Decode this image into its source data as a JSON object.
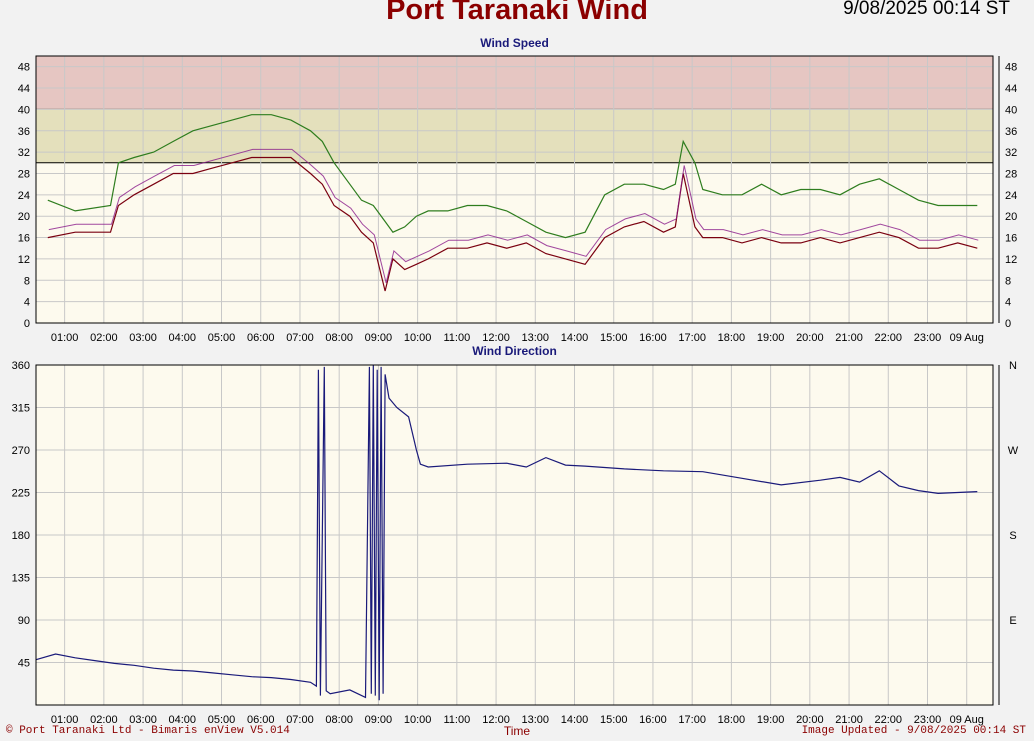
{
  "title": "Port Taranaki Wind",
  "timestamp": "9/08/2025 00:14 ST",
  "footer_left": "© Port Taranaki Ltd - Bimaris enView V5.014",
  "footer_right": "Image Updated - 9/08/2025 00:14 ST",
  "x_axis_label": "Time",
  "colors": {
    "speed_band_high": "#e6c6c2",
    "speed_band_mid": "#e4e0bc",
    "plot_bg": "#fdfaee",
    "gust_line": "#2e7d1e",
    "avg_line_dark": "#7a0010",
    "avg_line_purple": "#8a1a8a",
    "direction_line": "#1a1a7a"
  },
  "chart_data": [
    {
      "type": "line",
      "title": "Wind Speed",
      "xlabel": "",
      "ylabel": "",
      "ylim": [
        0,
        50
      ],
      "yticks": [
        "0",
        "4",
        "8",
        "12",
        "16",
        "20",
        "24",
        "28",
        "32",
        "36",
        "40",
        "44",
        "48"
      ],
      "xticks": [
        "01:00",
        "02:00",
        "03:00",
        "04:00",
        "05:00",
        "06:00",
        "07:00",
        "08:00",
        "09:00",
        "10:00",
        "11:00",
        "12:00",
        "13:00",
        "14:00",
        "15:00",
        "16:00",
        "17:00",
        "18:00",
        "19:00",
        "20:00",
        "21:00",
        "22:00",
        "23:00",
        "09 Aug"
      ],
      "bands": [
        {
          "from": 40,
          "to": 50,
          "color": "#e6c6c2"
        },
        {
          "from": 30,
          "to": 40,
          "color": "#e4e0bc"
        }
      ],
      "grid": true,
      "x_hours": [
        0.3,
        1.0,
        1.9,
        2.1,
        2.5,
        3.0,
        3.5,
        4.0,
        4.5,
        5.0,
        5.5,
        6.0,
        6.5,
        7.0,
        7.3,
        7.6,
        8.0,
        8.3,
        8.6,
        8.9,
        9.1,
        9.4,
        9.7,
        10.0,
        10.5,
        11.0,
        11.5,
        12.0,
        12.5,
        13.0,
        13.5,
        14.0,
        14.5,
        15.0,
        15.5,
        16.0,
        16.3,
        16.5,
        16.8,
        17.0,
        17.5,
        18.0,
        18.5,
        19.0,
        19.5,
        20.0,
        20.5,
        21.0,
        21.5,
        22.0,
        22.5,
        23.0,
        23.5,
        24.0
      ],
      "series": [
        {
          "values": [
            23,
            21,
            22,
            30,
            31,
            32,
            34,
            36,
            37,
            38,
            39,
            39,
            38,
            36,
            34,
            30,
            26,
            23,
            22,
            19,
            17,
            18,
            20,
            21,
            21,
            22,
            22,
            21,
            19,
            17,
            16,
            17,
            24,
            26,
            26,
            25,
            26,
            34,
            30,
            25,
            24,
            24,
            26,
            24,
            25,
            25,
            24,
            26,
            27,
            25,
            23,
            22,
            22,
            22
          ],
          "color": "#2e7d1e"
        },
        {
          "values": [
            16,
            17,
            17,
            22,
            24,
            26,
            28,
            28,
            29,
            30,
            31,
            31,
            31,
            28,
            26,
            22,
            20,
            17,
            15,
            6,
            12,
            10,
            11,
            12,
            14,
            14,
            15,
            14,
            15,
            13,
            12,
            11,
            16,
            18,
            19,
            17,
            18,
            28,
            18,
            16,
            16,
            15,
            16,
            15,
            15,
            16,
            15,
            16,
            17,
            16,
            14,
            14,
            15,
            14
          ],
          "color": "#7a0010"
        }
      ]
    },
    {
      "type": "line",
      "title": "Wind Direction",
      "xlabel": "Time",
      "ylabel": "",
      "ylim": [
        0,
        360
      ],
      "yticks": [
        "45",
        "90",
        "135",
        "180",
        "225",
        "270",
        "315",
        "360"
      ],
      "compass": [
        {
          "deg": 90,
          "label": "E"
        },
        {
          "deg": 180,
          "label": "S"
        },
        {
          "deg": 270,
          "label": "W"
        },
        {
          "deg": 360,
          "label": "N"
        }
      ],
      "xticks": [
        "01:00",
        "02:00",
        "03:00",
        "04:00",
        "05:00",
        "06:00",
        "07:00",
        "08:00",
        "09:00",
        "10:00",
        "11:00",
        "12:00",
        "13:00",
        "14:00",
        "15:00",
        "16:00",
        "17:00",
        "18:00",
        "19:00",
        "20:00",
        "21:00",
        "22:00",
        "23:00",
        "09 Aug"
      ],
      "grid": true,
      "x_hours": [
        0.0,
        0.5,
        1.0,
        1.5,
        2.0,
        2.5,
        3.0,
        3.5,
        4.0,
        4.5,
        5.0,
        5.5,
        6.0,
        6.5,
        7.0,
        7.15,
        7.2,
        7.25,
        7.35,
        7.4,
        7.5,
        8.0,
        8.4,
        8.5,
        8.55,
        8.6,
        8.65,
        8.7,
        8.75,
        8.8,
        8.85,
        8.9,
        9.0,
        9.2,
        9.5,
        9.7,
        9.8,
        10.0,
        11.0,
        12.0,
        12.5,
        13.0,
        13.5,
        14.0,
        15.0,
        16.0,
        17.0,
        18.0,
        19.0,
        20.0,
        20.5,
        21.0,
        21.5,
        22.0,
        22.5,
        23.0,
        23.5,
        24.0
      ],
      "series": [
        {
          "values": [
            48,
            54,
            50,
            47,
            44,
            42,
            39,
            37,
            36,
            34,
            32,
            30,
            29,
            27,
            24,
            20,
            355,
            10,
            358,
            15,
            12,
            16,
            8,
            358,
            12,
            360,
            10,
            355,
            5,
            358,
            12,
            350,
            325,
            315,
            305,
            270,
            255,
            252,
            255,
            256,
            252,
            262,
            254,
            253,
            250,
            248,
            247,
            240,
            233,
            238,
            241,
            236,
            248,
            232,
            227,
            224,
            225,
            226
          ],
          "color": "#1a1a7a"
        }
      ]
    }
  ]
}
